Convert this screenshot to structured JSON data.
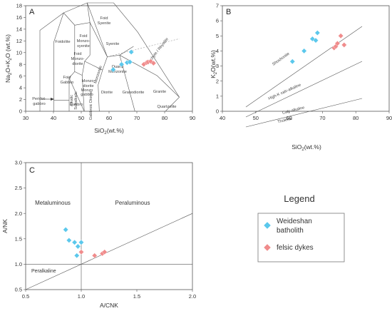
{
  "colors": {
    "weideshan": "#5bc8ec",
    "dykes": "#f08c8c",
    "line": "#555555"
  },
  "legend": {
    "title": "Legend",
    "items": [
      {
        "label_lines": [
          "Weideshan",
          "batholith"
        ],
        "color": "#5bc8ec"
      },
      {
        "label_lines": [
          "felsic dykes"
        ],
        "color": "#f08c8c"
      }
    ]
  },
  "chart_data": [
    {
      "panel": "A",
      "type": "scatter",
      "xlabel": "SiO",
      "xlabel_sub": "2",
      "xlabel_suffix": "(wt.%)",
      "ylabel_parts": [
        "Na",
        "2",
        "O+K",
        "2",
        "O (wt.%)"
      ],
      "xlim": [
        30,
        90
      ],
      "ylim": [
        0,
        18
      ],
      "xticks": [
        30,
        40,
        50,
        60,
        70,
        80,
        90
      ],
      "yticks": [
        0,
        2,
        4,
        6,
        8,
        10,
        12,
        14,
        16,
        18
      ],
      "field_labels": [
        "Foidolite",
        "Foid Syenite",
        "Foid Monzo- syenite",
        "Syenite",
        "Foid Monzo- diorite",
        "Foid Gabbro",
        "Monzo- diorite",
        "Monzonite",
        "Quartz Monzonite",
        "Monzo gabbro",
        "Trachyte / Rhyolite",
        "Granite",
        "Peridot- gabbro",
        "Alkalic Subalkalic",
        "Gabbro",
        "Gabbroic Diorite",
        "Diorite",
        "Granodiorite",
        "Quartzolite"
      ],
      "series": [
        {
          "name": "Weideshan batholith",
          "x": [
            61.5,
            64.5,
            66.5,
            67.5,
            68.0
          ],
          "y": [
            7.1,
            8.0,
            8.3,
            8.4,
            10.1
          ]
        },
        {
          "name": "felsic dykes",
          "x": [
            72.5,
            73.5,
            74.0,
            75.0,
            76.0
          ],
          "y": [
            8.0,
            8.3,
            8.4,
            8.5,
            8.2
          ]
        }
      ]
    },
    {
      "panel": "B",
      "type": "scatter",
      "xlabel": "SiO",
      "xlabel_sub": "2",
      "xlabel_suffix": "(wt.%)",
      "ylabel_parts": [
        "K",
        "2",
        "O(wt.%)"
      ],
      "xlim": [
        40,
        90
      ],
      "ylim": [
        0,
        7
      ],
      "xticks": [
        40,
        50,
        60,
        70,
        80,
        90
      ],
      "yticks": [
        0,
        1,
        2,
        3,
        4,
        5,
        6,
        7
      ],
      "field_labels": [
        "Shoshonite",
        "High-K calc-alkaline",
        "Calc-alkaline",
        "Tholeiite"
      ],
      "series": [
        {
          "name": "Weideshan batholith",
          "x": [
            61.0,
            64.5,
            67.0,
            68.0,
            68.5
          ],
          "y": [
            3.3,
            4.0,
            4.8,
            4.7,
            5.2
          ]
        },
        {
          "name": "felsic dykes",
          "x": [
            73.5,
            74.0,
            74.5,
            75.5,
            76.5
          ],
          "y": [
            4.2,
            4.3,
            4.5,
            5.0,
            4.4
          ]
        }
      ]
    },
    {
      "panel": "C",
      "type": "scatter",
      "xlabel": "A/CNK",
      "ylabel": "A/NK",
      "xlim": [
        0.5,
        2.0
      ],
      "ylim": [
        0.5,
        3.0
      ],
      "xticks": [
        "0.5",
        "1.0",
        "1.5",
        "2.0"
      ],
      "yticks": [
        "0.5",
        "1.0",
        "1.5",
        "2.0",
        "2.5",
        "3.0"
      ],
      "field_labels": [
        "Metaluminous",
        "Peraluminous",
        "Peralkaline"
      ],
      "series": [
        {
          "name": "Weideshan batholith",
          "x": [
            0.86,
            0.89,
            0.94,
            0.97,
            1.0,
            0.96
          ],
          "y": [
            1.68,
            1.47,
            1.43,
            1.35,
            1.43,
            1.17
          ]
        },
        {
          "name": "felsic dykes",
          "x": [
            1.0,
            1.12,
            1.19,
            1.21
          ],
          "y": [
            1.24,
            1.17,
            1.21,
            1.24
          ]
        }
      ]
    }
  ]
}
